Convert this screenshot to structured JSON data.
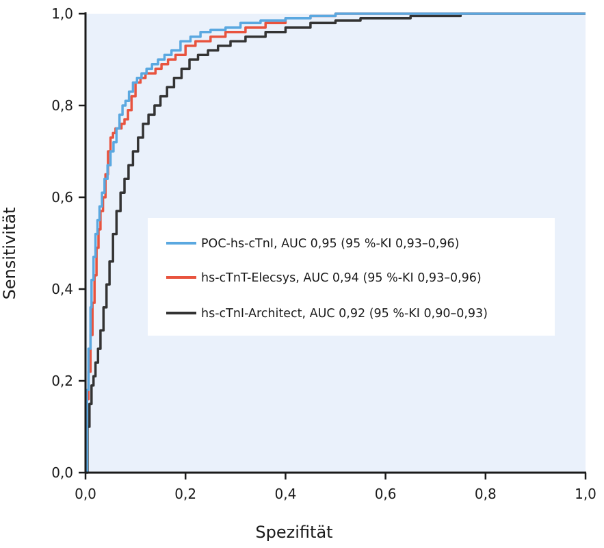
{
  "chart_data": {
    "type": "line",
    "title": "",
    "xlabel": "Spezifität",
    "ylabel": "Sensitivität",
    "xlim": [
      0,
      1
    ],
    "ylim": [
      0,
      1
    ],
    "xticks": [
      "0,0",
      "0,2",
      "0,4",
      "0,6",
      "0,8",
      "1,0"
    ],
    "yticks": [
      "0,0",
      "0,2",
      "0,4",
      "0,6",
      "0,8",
      "1,0"
    ],
    "grid": false,
    "legend_position": "center-right",
    "plot_background": "#eaf1fb",
    "series": [
      {
        "name": "POC-hs-cTnI, AUC 0,95 (95 %-KI 0,93–0,96)",
        "color": "#5aa8e0",
        "x": [
          0,
          0.003,
          0.006,
          0.01,
          0.012,
          0.016,
          0.02,
          0.024,
          0.028,
          0.033,
          0.038,
          0.044,
          0.05,
          0.056,
          0.062,
          0.068,
          0.074,
          0.08,
          0.087,
          0.095,
          0.103,
          0.112,
          0.122,
          0.133,
          0.145,
          0.158,
          0.172,
          0.19,
          0.21,
          0.23,
          0.25,
          0.28,
          0.31,
          0.35,
          0.4,
          0.45,
          0.5,
          0.6,
          0.75,
          1
        ],
        "y": [
          0,
          0.18,
          0.27,
          0.36,
          0.42,
          0.47,
          0.52,
          0.55,
          0.58,
          0.61,
          0.64,
          0.67,
          0.7,
          0.72,
          0.75,
          0.78,
          0.8,
          0.81,
          0.83,
          0.85,
          0.86,
          0.87,
          0.88,
          0.89,
          0.9,
          0.91,
          0.92,
          0.94,
          0.95,
          0.96,
          0.965,
          0.97,
          0.98,
          0.985,
          0.99,
          0.995,
          1,
          1,
          1,
          1
        ]
      },
      {
        "name": "hs-cTnT-Elecsys, AUC 0,94 (95 %-KI 0,93–0,96)",
        "color": "#e8533e",
        "x": [
          0,
          0.003,
          0.006,
          0.01,
          0.014,
          0.018,
          0.022,
          0.026,
          0.03,
          0.035,
          0.04,
          0.045,
          0.05,
          0.055,
          0.06,
          0.066,
          0.072,
          0.078,
          0.085,
          0.092,
          0.1,
          0.11,
          0.12,
          0.13,
          0.14,
          0.152,
          0.165,
          0.18,
          0.2,
          0.22,
          0.25,
          0.28,
          0.32,
          0.36,
          0.4,
          0.45,
          0.5,
          0.6,
          0.75,
          1
        ],
        "y": [
          0,
          0.16,
          0.22,
          0.3,
          0.37,
          0.43,
          0.49,
          0.53,
          0.57,
          0.6,
          0.65,
          0.7,
          0.73,
          0.74,
          0.75,
          0.75,
          0.76,
          0.77,
          0.79,
          0.82,
          0.85,
          0.86,
          0.87,
          0.87,
          0.88,
          0.89,
          0.9,
          0.91,
          0.93,
          0.94,
          0.95,
          0.96,
          0.97,
          0.98,
          0.99,
          0.995,
          1,
          1,
          1,
          1
        ]
      },
      {
        "name": "hs-cTnI-Architect, AUC 0,92 (95 %-KI 0,90–0,93)",
        "color": "#333333",
        "x": [
          0,
          0.004,
          0.008,
          0.012,
          0.016,
          0.02,
          0.025,
          0.03,
          0.036,
          0.042,
          0.048,
          0.055,
          0.062,
          0.07,
          0.078,
          0.086,
          0.095,
          0.105,
          0.115,
          0.126,
          0.138,
          0.15,
          0.163,
          0.177,
          0.192,
          0.208,
          0.225,
          0.245,
          0.265,
          0.29,
          0.32,
          0.36,
          0.4,
          0.45,
          0.5,
          0.55,
          0.65,
          0.75,
          0.85,
          1
        ],
        "y": [
          0,
          0.1,
          0.15,
          0.19,
          0.21,
          0.24,
          0.27,
          0.31,
          0.36,
          0.41,
          0.46,
          0.52,
          0.57,
          0.61,
          0.64,
          0.67,
          0.7,
          0.73,
          0.76,
          0.78,
          0.8,
          0.82,
          0.84,
          0.86,
          0.88,
          0.9,
          0.91,
          0.92,
          0.93,
          0.94,
          0.95,
          0.96,
          0.97,
          0.98,
          0.985,
          0.99,
          0.995,
          1,
          1,
          1
        ]
      }
    ]
  }
}
